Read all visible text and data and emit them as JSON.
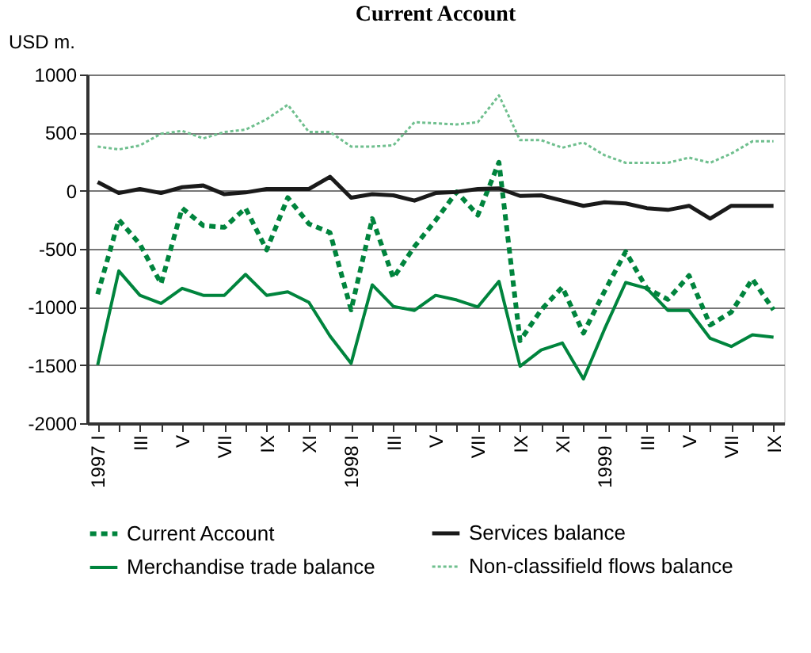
{
  "chart_data": {
    "type": "line",
    "title": "Current Account",
    "ylabel": "USD m.",
    "categories": [
      "1997 I",
      null,
      "III",
      null,
      "V",
      null,
      "VII",
      null,
      "IX",
      null,
      "XI",
      null,
      "1998 I",
      null,
      "III",
      null,
      "V",
      null,
      "VII",
      null,
      "IX",
      null,
      "XI",
      null,
      "1999 I",
      null,
      "III",
      null,
      "V",
      null,
      "VII",
      null,
      "IX"
    ],
    "series": [
      {
        "name": "Current Account",
        "color": "#00843d",
        "line_style": "dashed",
        "values": [
          -890,
          -250,
          -460,
          -800,
          -150,
          -300,
          -315,
          -150,
          -510,
          -60,
          -285,
          -360,
          -1025,
          -240,
          -750,
          -480,
          -255,
          -10,
          -210,
          245,
          -1290,
          -1025,
          -830,
          -1225,
          -865,
          -525,
          -840,
          -935,
          -730,
          -1155,
          -1045,
          -760,
          -1025
        ]
      },
      {
        "name": "Services balance",
        "color": "#1a1a1a",
        "line_style": "solid",
        "values": [
          75,
          -20,
          15,
          -20,
          30,
          45,
          -30,
          -15,
          15,
          15,
          15,
          120,
          -60,
          -30,
          -40,
          -85,
          -20,
          -10,
          15,
          20,
          -45,
          -40,
          -85,
          -130,
          -100,
          -110,
          -150,
          -165,
          -130,
          -240,
          -130,
          -130,
          -130
        ]
      },
      {
        "name": "Merchandise trade balance",
        "color": "#00843d",
        "line_style": "solid",
        "values": [
          -1500,
          -690,
          -900,
          -970,
          -840,
          -900,
          -900,
          -720,
          -900,
          -870,
          -960,
          -1250,
          -1485,
          -810,
          -995,
          -1030,
          -900,
          -940,
          -1000,
          -780,
          -1510,
          -1370,
          -1310,
          -1620,
          -1190,
          -790,
          -840,
          -1030,
          -1030,
          -1270,
          -1340,
          -1240,
          -1260
        ]
      },
      {
        "name": "Non-classifield flows balance",
        "color": "#6fbf8e",
        "line_style": "dotted",
        "values": [
          380,
          355,
          390,
          490,
          515,
          450,
          505,
          525,
          615,
          740,
          505,
          505,
          380,
          380,
          390,
          590,
          580,
          570,
          590,
          820,
          435,
          435,
          370,
          415,
          305,
          240,
          240,
          240,
          285,
          240,
          320,
          425,
          425
        ]
      }
    ],
    "ylim": [
      -2000,
      1000
    ],
    "yticks": [
      -2000,
      -1500,
      -1000,
      -500,
      0,
      500,
      1000
    ],
    "grid": "y",
    "legend": "bottom"
  }
}
